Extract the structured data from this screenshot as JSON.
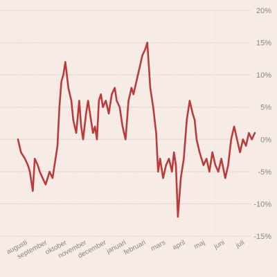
{
  "chart_data": {
    "type": "line",
    "title": "",
    "xlabel": "",
    "ylabel": "",
    "ylim": [
      -15,
      20
    ],
    "yticks": [
      20,
      15,
      10,
      5,
      0,
      -5,
      -10,
      -15
    ],
    "ytick_labels": [
      "20%",
      "15%",
      "10%",
      "5%",
      "0%",
      "-5%",
      "-10%",
      "-15%"
    ],
    "y_axis_position": "right",
    "grid": true,
    "legend": "none",
    "months": [
      "augusti",
      "september",
      "oktober",
      "november",
      "december",
      "januari",
      "februari",
      "mars",
      "april",
      "maj",
      "juni",
      "juli"
    ],
    "color": "#b93b3b",
    "series": [
      {
        "x": [
          0,
          0.15,
          0.35,
          0.5,
          0.6,
          0.75,
          0.85,
          1.0,
          1.1,
          1.25,
          1.4,
          1.6,
          1.75,
          1.9,
          2.0,
          2.1,
          2.2,
          2.3,
          2.4,
          2.55,
          2.7,
          2.8,
          2.95,
          3.1,
          3.2,
          3.3,
          3.45,
          3.55,
          3.7,
          3.8,
          3.9,
          4.0,
          4.1,
          4.2,
          4.3,
          4.45,
          4.6,
          4.75,
          4.9,
          5.0,
          5.15,
          5.3,
          5.45,
          5.6,
          5.75,
          5.85,
          6.0,
          6.15,
          6.3,
          6.45,
          6.55,
          6.7,
          6.85,
          7.0,
          7.1,
          7.2,
          7.35,
          7.5,
          7.65,
          7.8,
          7.9,
          8.0,
          8.1,
          8.25,
          8.4,
          8.55,
          8.7,
          8.85,
          8.95,
          9.05,
          9.2,
          9.4,
          9.55,
          9.7,
          9.85,
          10.0,
          10.15,
          10.3,
          10.5,
          10.65,
          10.8,
          10.95,
          11.1,
          11.25,
          11.4,
          11.55,
          11.7,
          11.85,
          12.0
        ],
        "y": [
          0,
          -2,
          -3,
          -4,
          -5,
          -8,
          -3,
          -4,
          -5,
          -6,
          -7,
          -5,
          -6,
          -3,
          -1,
          5,
          9,
          10,
          12,
          8,
          6,
          3,
          1,
          6,
          2,
          0,
          4,
          6,
          3,
          1,
          2,
          0,
          6,
          7,
          5,
          6,
          4,
          7,
          8,
          6,
          5,
          2,
          0,
          6,
          8,
          7,
          9,
          11,
          13,
          14,
          15,
          8,
          5,
          1,
          -5,
          -3,
          -6,
          -4,
          -3,
          -5,
          -2,
          -4,
          -12,
          -6,
          -3,
          3,
          6,
          4,
          3,
          0,
          -2,
          -4,
          -3,
          -5,
          -2,
          -4,
          -5,
          -3,
          -6,
          -4,
          0,
          2,
          0,
          -2,
          0,
          -1,
          1,
          0,
          1
        ]
      }
    ]
  }
}
